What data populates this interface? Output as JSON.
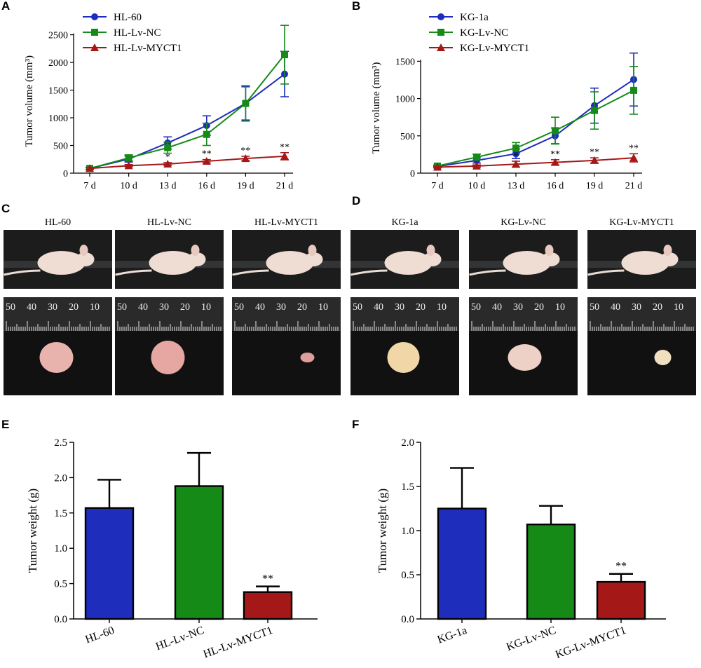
{
  "colors": {
    "blue": "#1f2dbd",
    "green": "#158a17",
    "red": "#a51818",
    "black": "#000000"
  },
  "panel_letters": {
    "A": "A",
    "B": "B",
    "C": "C",
    "D": "D",
    "E": "E",
    "F": "F"
  },
  "photo_labels": [
    "HL-60",
    "HL-Lv-NC",
    "HL-Lv-MYCT1",
    "KG-1a",
    "KG-Lv-NC",
    "KG-Lv-MYCT1"
  ],
  "ruler_numbers": [
    "50",
    "40",
    "30",
    "20",
    "10"
  ],
  "chart_data": [
    {
      "id": "A",
      "type": "line",
      "ylabel": "Tumor volume (mm³)",
      "categories": [
        "7 d",
        "10 d",
        "13 d",
        "16 d",
        "19 d",
        "21 d"
      ],
      "ylim": [
        0,
        2600
      ],
      "yticks": [
        0,
        500,
        1000,
        1500,
        2000,
        2500
      ],
      "legend_position": "top-left",
      "series": [
        {
          "name": "HL-60",
          "marker": "circle",
          "color": "#1f2dbd",
          "values": [
            85,
            255,
            545,
            860,
            1260,
            1790
          ],
          "errors": [
            20,
            55,
            110,
            175,
            300,
            410
          ]
        },
        {
          "name": "HL-Lv-NC",
          "marker": "square",
          "color": "#158a17",
          "values": [
            85,
            275,
            460,
            700,
            1260,
            2140
          ],
          "errors": [
            20,
            55,
            100,
            200,
            320,
            530
          ]
        },
        {
          "name": "HL-Lv-MYCT1",
          "marker": "triangle",
          "color": "#a51818",
          "values": [
            85,
            135,
            165,
            215,
            265,
            305
          ],
          "errors": [
            15,
            20,
            25,
            30,
            40,
            65
          ]
        }
      ],
      "annotations": [
        "",
        "",
        "*",
        "**",
        "**",
        "**"
      ]
    },
    {
      "id": "B",
      "type": "line",
      "ylabel": "Tumor volume (mm³)",
      "categories": [
        "7 d",
        "10 d",
        "13 d",
        "16 d",
        "19 d",
        "21 d"
      ],
      "ylim": [
        0,
        1750
      ],
      "yticks": [
        0,
        500,
        1000,
        1500
      ],
      "legend_position": "top-left",
      "series": [
        {
          "name": "KG-1a",
          "marker": "circle",
          "color": "#1f2dbd",
          "values": [
            90,
            170,
            260,
            500,
            905,
            1255
          ],
          "errors": [
            15,
            35,
            65,
            105,
            235,
            355
          ]
        },
        {
          "name": "KG-Lv-NC",
          "marker": "square",
          "color": "#158a17",
          "values": [
            95,
            215,
            335,
            570,
            840,
            1110
          ],
          "errors": [
            15,
            40,
            75,
            180,
            250,
            320
          ]
        },
        {
          "name": "KG-Lv-MYCT1",
          "marker": "triangle",
          "color": "#a51818",
          "values": [
            80,
            95,
            120,
            145,
            170,
            205
          ],
          "errors": [
            10,
            15,
            40,
            35,
            35,
            55
          ]
        }
      ],
      "annotations": [
        "",
        "",
        "*",
        "**",
        "**",
        "**"
      ]
    },
    {
      "id": "E",
      "type": "bar",
      "ylabel": "Tumor weight (g)",
      "categories": [
        "HL-60",
        "HL-Lv-NC",
        "HL-Lv-MYCT1"
      ],
      "values": [
        1.57,
        1.88,
        0.38
      ],
      "errors": [
        0.4,
        0.47,
        0.08
      ],
      "colors": [
        "#1f2dbd",
        "#158a17",
        "#a51818"
      ],
      "ylim": [
        0,
        2.5
      ],
      "yticks": [
        "0.0",
        "0.5",
        "1.0",
        "1.5",
        "2.0",
        "2.5"
      ],
      "annotations": [
        "",
        "",
        "**"
      ]
    },
    {
      "id": "F",
      "type": "bar",
      "ylabel": "Tumor weight (g)",
      "categories": [
        "KG-1a",
        "KG-Lv-NC",
        "KG-Lv-MYCT1"
      ],
      "values": [
        1.25,
        1.07,
        0.42
      ],
      "errors": [
        0.46,
        0.21,
        0.09
      ],
      "colors": [
        "#1f2dbd",
        "#158a17",
        "#a51818"
      ],
      "ylim": [
        0,
        2.0
      ],
      "yticks": [
        "0.0",
        "0.5",
        "1.0",
        "1.5",
        "2.0"
      ],
      "annotations": [
        "",
        "",
        "**"
      ]
    }
  ]
}
